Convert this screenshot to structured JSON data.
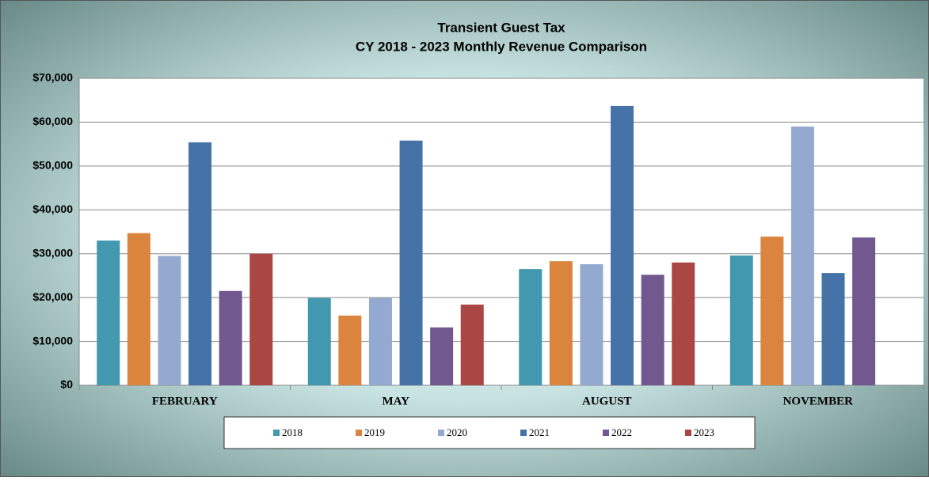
{
  "chart_data": {
    "type": "bar",
    "title": "Transient Guest Tax",
    "subtitle": "CY 2018 - 2023 Monthly Revenue Comparison",
    "categories": [
      "FEBRUARY",
      "MAY",
      "AUGUST",
      "NOVEMBER"
    ],
    "series": [
      {
        "name": "2018",
        "color": "#4198af",
        "values": [
          33000,
          19900,
          26500,
          29600
        ]
      },
      {
        "name": "2019",
        "color": "#db843d",
        "values": [
          34700,
          15900,
          28300,
          33900
        ]
      },
      {
        "name": "2020",
        "color": "#93a9cf",
        "values": [
          29500,
          19900,
          27600,
          59000
        ]
      },
      {
        "name": "2021",
        "color": "#4572a7",
        "values": [
          55400,
          55800,
          63700,
          25600
        ]
      },
      {
        "name": "2022",
        "color": "#71588f",
        "values": [
          21500,
          13200,
          25200,
          33700
        ]
      },
      {
        "name": "2023",
        "color": "#aa4643",
        "values": [
          30000,
          18400,
          28000,
          null
        ]
      }
    ],
    "ylim": [
      0,
      70000
    ],
    "yticks": [
      {
        "value": 0,
        "label": "$0"
      },
      {
        "value": 10000,
        "label": "$10,000"
      },
      {
        "value": 20000,
        "label": "$20,000"
      },
      {
        "value": 30000,
        "label": "$30,000"
      },
      {
        "value": 40000,
        "label": "$40,000"
      },
      {
        "value": 50000,
        "label": "$50,000"
      },
      {
        "value": 60000,
        "label": "$60,000"
      },
      {
        "value": 70000,
        "label": "$70,000"
      }
    ],
    "grid": true,
    "legend": "bottom"
  }
}
